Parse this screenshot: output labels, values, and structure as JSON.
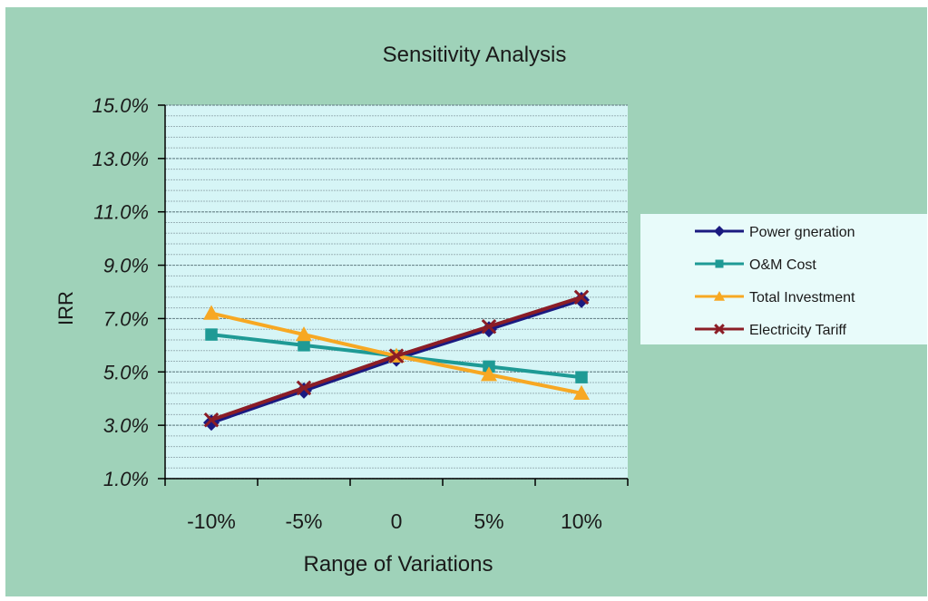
{
  "chart_data": {
    "type": "line",
    "title": "Sensitivity Analysis",
    "xlabel": "Range of Variations",
    "ylabel": "IRR",
    "categories": [
      "-10%",
      "-5%",
      "0",
      "5%",
      "10%"
    ],
    "yticks": [
      "1.0%",
      "3.0%",
      "5.0%",
      "7.0%",
      "9.0%",
      "11.0%",
      "13.0%",
      "15.0%"
    ],
    "ylim": [
      1.0,
      15.0
    ],
    "ytick_step": 2.0,
    "minor_grid_step": 0.4,
    "grid": true,
    "legend_position": "right",
    "series": [
      {
        "name": "Power gneration",
        "marker": "diamond",
        "color": "#1a1a80",
        "values": [
          3.1,
          4.3,
          5.5,
          6.6,
          7.7
        ]
      },
      {
        "name": "O&M Cost",
        "marker": "square",
        "color": "#1e9a95",
        "values": [
          6.4,
          6.0,
          5.6,
          5.2,
          4.8
        ]
      },
      {
        "name": "Total Investment",
        "marker": "triangle",
        "color": "#f7a823",
        "values": [
          7.2,
          6.4,
          5.6,
          4.9,
          4.2
        ]
      },
      {
        "name": "Electricity Tariff",
        "marker": "x",
        "color": "#8b1d26",
        "values": [
          3.2,
          4.4,
          5.6,
          6.7,
          7.8
        ]
      }
    ]
  }
}
